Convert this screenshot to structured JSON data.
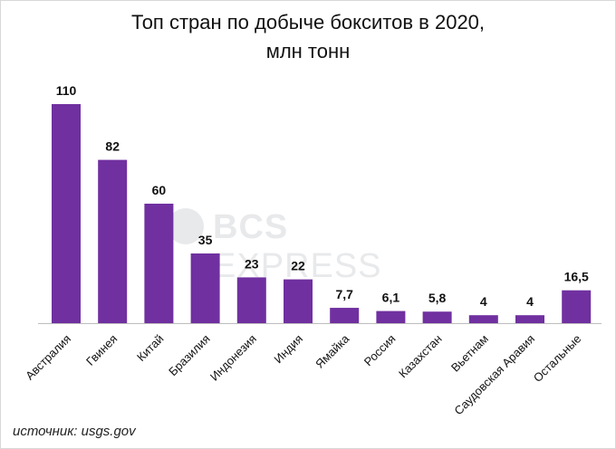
{
  "title_line1": "Топ стран по добыче бокситов в 2020,",
  "title_line2": "млн тонн",
  "watermark_bold": "BCS",
  "watermark_rest": " EXPRESS",
  "source": "источник: usgs.gov",
  "colors": {
    "bar": "#7030a0",
    "axis": "#bdbdbd"
  },
  "chart_data": {
    "type": "bar",
    "title": "Топ стран по добыче бокситов в 2020, млн тонн",
    "categories": [
      "Австралия",
      "Гвинея",
      "Китай",
      "Бразилия",
      "Индонезия",
      "Индия",
      "Ямайка",
      "Россия",
      "Казахстан",
      "Вьетнам",
      "Саудовская Аравия",
      "Остальные"
    ],
    "values": [
      110,
      82,
      60,
      35,
      23,
      22,
      7.7,
      6.1,
      5.8,
      4,
      4,
      16.5
    ],
    "value_labels": [
      "110",
      "82",
      "60",
      "35",
      "23",
      "22",
      "7,7",
      "6,1",
      "5,8",
      "4",
      "4",
      "16,5"
    ],
    "xlabel": "",
    "ylabel": "",
    "ylim": [
      0,
      110
    ],
    "grid": false,
    "legend": "none"
  }
}
